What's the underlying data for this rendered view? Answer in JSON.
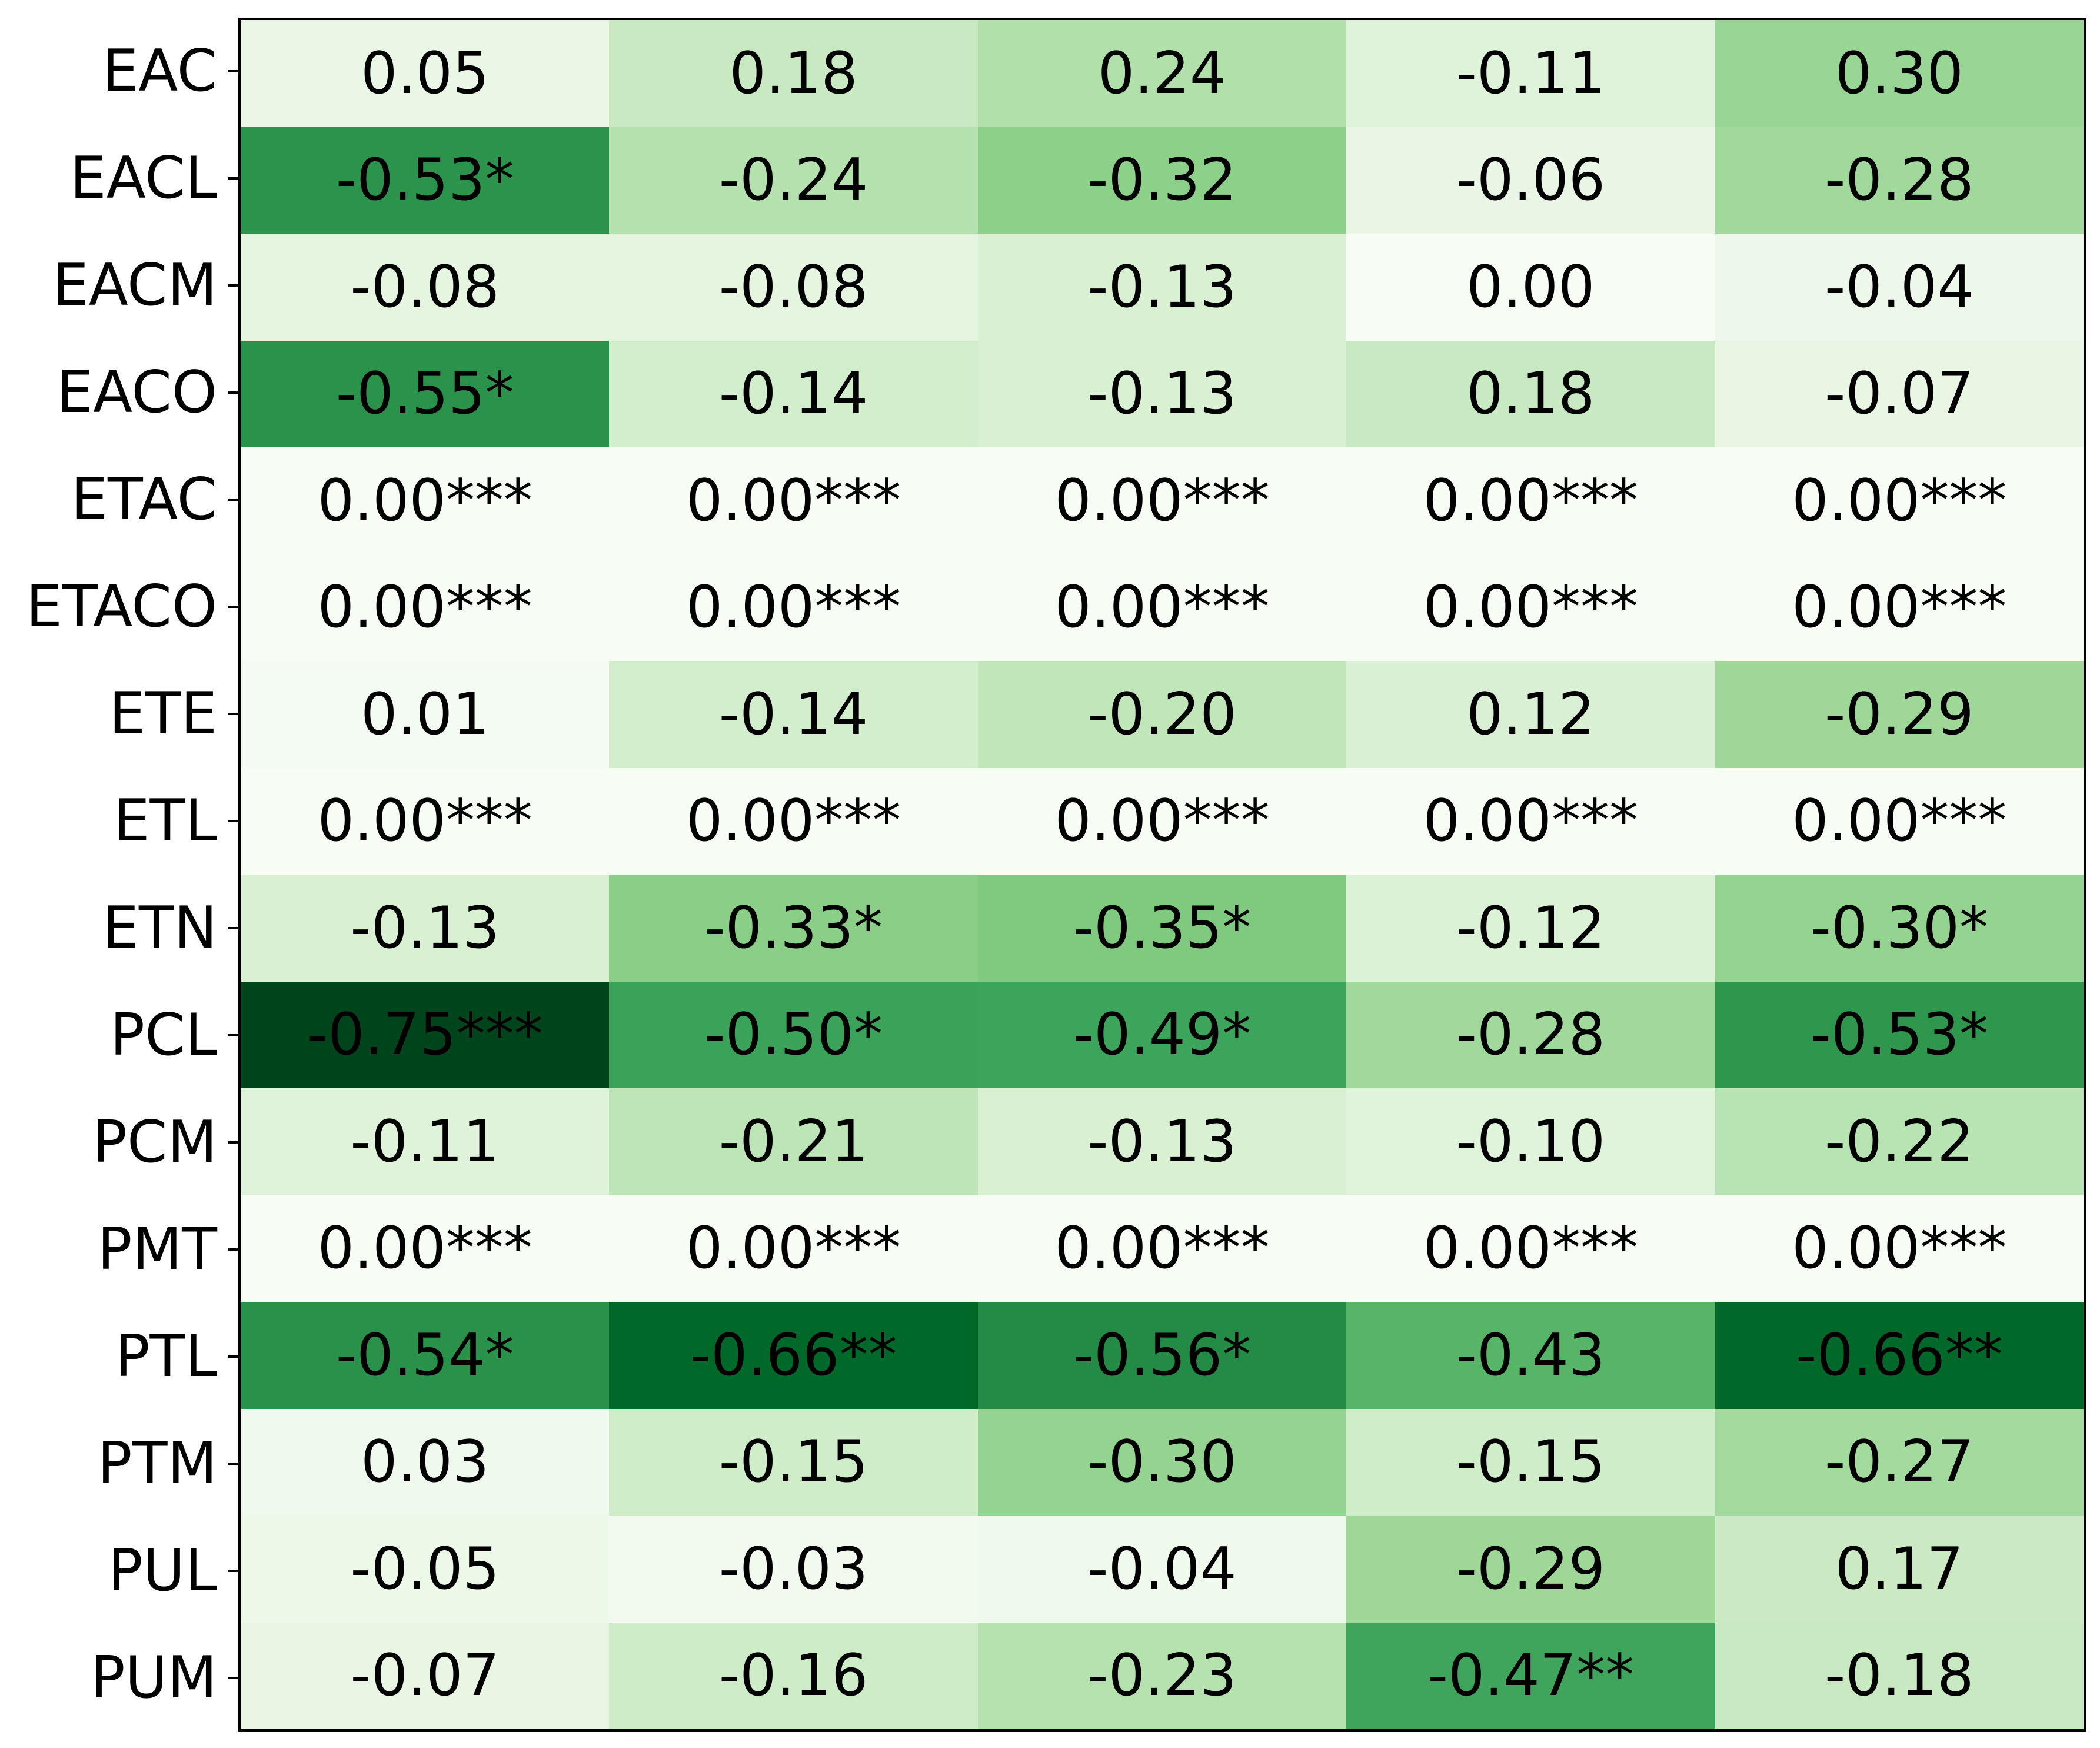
{
  "chart_data": {
    "type": "heatmap",
    "title": "",
    "xlabel": "",
    "ylabel": "",
    "colormap": "Greens",
    "row_labels": [
      "EAC",
      "EACL",
      "EACM",
      "EACO",
      "ETAC",
      "ETACO",
      "ETE",
      "ETL",
      "ETN",
      "PCL",
      "PCM",
      "PMT",
      "PTL",
      "PTM",
      "PUL",
      "PUM"
    ],
    "column_labels": [],
    "values": [
      [
        0.05,
        0.18,
        0.24,
        -0.11,
        0.3
      ],
      [
        -0.53,
        -0.24,
        -0.32,
        -0.06,
        -0.28
      ],
      [
        -0.08,
        -0.08,
        -0.13,
        0.0,
        -0.04
      ],
      [
        -0.55,
        -0.14,
        -0.13,
        0.18,
        -0.07
      ],
      [
        0.0,
        0.0,
        0.0,
        0.0,
        0.0
      ],
      [
        0.0,
        0.0,
        0.0,
        0.0,
        0.0
      ],
      [
        0.01,
        -0.14,
        -0.2,
        0.12,
        -0.29
      ],
      [
        0.0,
        0.0,
        0.0,
        0.0,
        0.0
      ],
      [
        -0.13,
        -0.33,
        -0.35,
        -0.12,
        -0.3
      ],
      [
        -0.75,
        -0.5,
        -0.49,
        -0.28,
        -0.53
      ],
      [
        -0.11,
        -0.21,
        -0.13,
        -0.1,
        -0.22
      ],
      [
        0.0,
        0.0,
        0.0,
        0.0,
        0.0
      ],
      [
        -0.54,
        -0.66,
        -0.56,
        -0.43,
        -0.66
      ],
      [
        0.03,
        -0.15,
        -0.3,
        -0.15,
        -0.27
      ],
      [
        -0.05,
        -0.03,
        -0.04,
        -0.29,
        0.17
      ],
      [
        -0.07,
        -0.16,
        -0.23,
        -0.47,
        -0.18
      ]
    ],
    "annotations": [
      [
        "0.05",
        "0.18",
        "0.24",
        "-0.11",
        "0.30"
      ],
      [
        "-0.53*",
        "-0.24",
        "-0.32",
        "-0.06",
        "-0.28"
      ],
      [
        "-0.08",
        "-0.08",
        "-0.13",
        "0.00",
        "-0.04"
      ],
      [
        "-0.55*",
        "-0.14",
        "-0.13",
        "0.18",
        "-0.07"
      ],
      [
        "0.00***",
        "0.00***",
        "0.00***",
        "0.00***",
        "0.00***"
      ],
      [
        "0.00***",
        "0.00***",
        "0.00***",
        "0.00***",
        "0.00***"
      ],
      [
        "0.01",
        "-0.14",
        "-0.20",
        "0.12",
        "-0.29"
      ],
      [
        "0.00***",
        "0.00***",
        "0.00***",
        "0.00***",
        "0.00***"
      ],
      [
        "-0.13",
        "-0.33*",
        "-0.35*",
        "-0.12",
        "-0.30*"
      ],
      [
        "-0.75***",
        "-0.50*",
        "-0.49*",
        "-0.28",
        "-0.53*"
      ],
      [
        "-0.11",
        "-0.21",
        "-0.13",
        "-0.10",
        "-0.22"
      ],
      [
        "0.00***",
        "0.00***",
        "0.00***",
        "0.00***",
        "0.00***"
      ],
      [
        "-0.54*",
        "-0.66**",
        "-0.56*",
        "-0.43",
        "-0.66**"
      ],
      [
        "0.03",
        "-0.15",
        "-0.30",
        "-0.15",
        "-0.27"
      ],
      [
        "-0.05",
        "-0.03",
        "-0.04",
        "-0.29",
        "0.17"
      ],
      [
        "-0.07",
        "-0.16",
        "-0.23",
        "-0.47**",
        "-0.18"
      ]
    ],
    "colors": [
      [
        "#eaf6e6",
        "#c8e9c1",
        "#b2e0ab",
        "#dff2da",
        "#99d595"
      ],
      [
        "#2c934c",
        "#b5e1ae",
        "#8dd08a",
        "#e9f6e5",
        "#a0d99b"
      ],
      [
        "#e5f5e0",
        "#e5f5e0",
        "#d9f0d3",
        "#f7fcf5",
        "#eef8ea"
      ],
      [
        "#2a924a",
        "#d3eecd",
        "#d9f0d3",
        "#c8e9c1",
        "#e8f6e3"
      ],
      [
        "#f7fcf5",
        "#f7fcf5",
        "#f7fcf5",
        "#f7fcf5",
        "#f7fcf5"
      ],
      [
        "#f7fcf5",
        "#f7fcf5",
        "#f7fcf5",
        "#f7fcf5",
        "#f7fcf5"
      ],
      [
        "#f4fbf2",
        "#d3eecd",
        "#c0e6b9",
        "#daf0d4",
        "#9ed798"
      ],
      [
        "#f7fcf5",
        "#f7fcf5",
        "#f7fcf5",
        "#f7fcf5",
        "#f7fcf5"
      ],
      [
        "#d9f0d3",
        "#8ace88",
        "#80ca80",
        "#dcf2d7",
        "#95d391"
      ],
      [
        "#00441b",
        "#3ba25a",
        "#3da45c",
        "#a0d99b",
        "#2e964d"
      ],
      [
        "#dff2da",
        "#bee5b8",
        "#d9f0d3",
        "#e0f3db",
        "#b8e3b2"
      ],
      [
        "#f7fcf5",
        "#f7fcf5",
        "#f7fcf5",
        "#f7fcf5",
        "#f7fcf5"
      ],
      [
        "#29914a",
        "#00692a",
        "#238b45",
        "#56b567",
        "#00692a"
      ],
      [
        "#f0f9ed",
        "#d0edca",
        "#95d391",
        "#d0edca",
        "#a3da9d"
      ],
      [
        "#ecf8e8",
        "#f2faef",
        "#eff9ec",
        "#9ed798",
        "#cbeac4"
      ],
      [
        "#e8f6e3",
        "#cdecc7",
        "#b6e2af",
        "#3fa55d",
        "#c8e9c1"
      ]
    ],
    "grid": false,
    "legend": null
  }
}
